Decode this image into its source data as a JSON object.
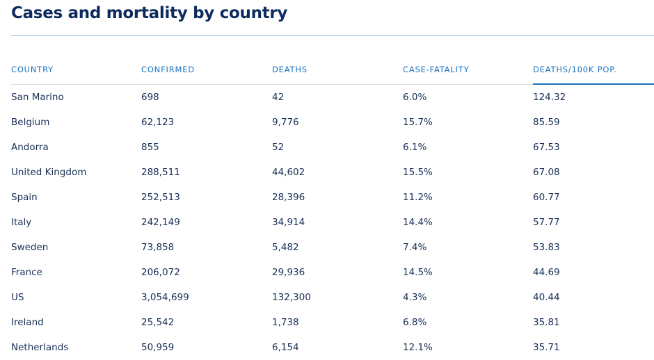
{
  "title": "Cases and mortality by country",
  "columns": [
    "COUNTRY",
    "CONFIRMED",
    "DEATHS",
    "CASE-FATALITY",
    "DEATHS/100K POP."
  ],
  "sorted_column": "DEATHS/100K POP.",
  "colors": {
    "title": "#0d2b5c",
    "header": "#1b72bf",
    "text": "#182f55",
    "rule": "#8cc0ea"
  },
  "rows": [
    [
      "San Marino",
      "698",
      "42",
      "6.0%",
      "124.32"
    ],
    [
      "Belgium",
      "62,123",
      "9,776",
      "15.7%",
      "85.59"
    ],
    [
      "Andorra",
      "855",
      "52",
      "6.1%",
      "67.53"
    ],
    [
      "United Kingdom",
      "288,511",
      "44,602",
      "15.5%",
      "67.08"
    ],
    [
      "Spain",
      "252,513",
      "28,396",
      "11.2%",
      "60.77"
    ],
    [
      "Italy",
      "242,149",
      "34,914",
      "14.4%",
      "57.77"
    ],
    [
      "Sweden",
      "73,858",
      "5,482",
      "7.4%",
      "53.83"
    ],
    [
      "France",
      "206,072",
      "29,936",
      "14.5%",
      "44.69"
    ],
    [
      "US",
      "3,054,699",
      "132,300",
      "4.3%",
      "40.44"
    ],
    [
      "Ireland",
      "25,542",
      "1,738",
      "6.8%",
      "35.81"
    ],
    [
      "Netherlands",
      "50,959",
      "6,154",
      "12.1%",
      "35.71"
    ]
  ]
}
